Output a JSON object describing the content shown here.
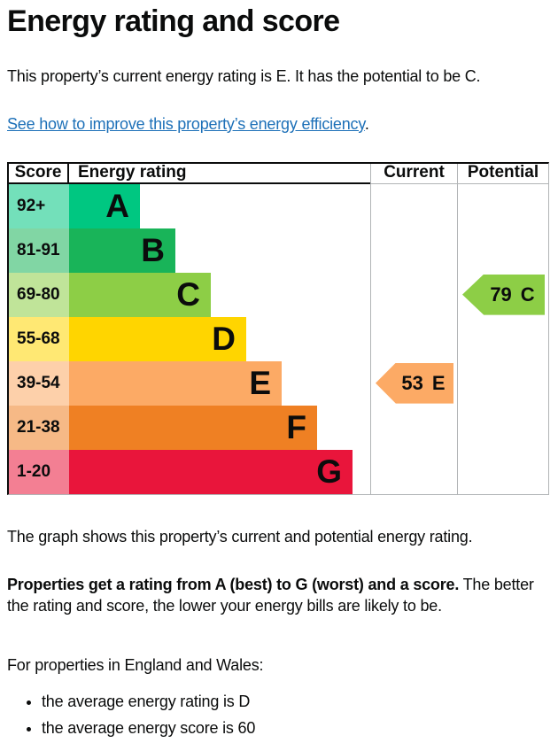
{
  "page": {
    "title": "Energy rating and score",
    "intro": "This property’s current energy rating is E. It has the potential to be C.",
    "link_text": "See how to improve this property’s energy efficiency",
    "link_suffix": ".",
    "link_color": "#1d70b8",
    "caption": "The graph shows this property’s current and potential energy rating.",
    "explain_bold": "Properties get a rating from A (best) to G (worst) and a score.",
    "explain_rest": " The better the rating and score, the lower your energy bills are likely to be.",
    "region_intro": "For properties in England and Wales:",
    "bullets": [
      "the average energy rating is D",
      "the average energy score is 60"
    ]
  },
  "chart_data": {
    "type": "bar",
    "orientation": "horizontal",
    "title": "Energy rating and score",
    "columns": [
      "Score",
      "Energy rating",
      "Current",
      "Potential"
    ],
    "categories": [
      "A",
      "B",
      "C",
      "D",
      "E",
      "F",
      "G"
    ],
    "score_ranges": [
      "92+",
      "81-91",
      "69-80",
      "55-68",
      "39-54",
      "21-38",
      "1-20"
    ],
    "relative_bar_lengths": [
      1,
      1.5,
      2,
      2.5,
      3,
      3.5,
      4
    ],
    "band_colors": [
      "#00c781",
      "#19b459",
      "#8dce46",
      "#ffd500",
      "#fcaa65",
      "#ef8023",
      "#e9153b"
    ],
    "current": {
      "score": 53,
      "rating": "E",
      "color": "#fcaa65",
      "column": "Current"
    },
    "potential": {
      "score": 79,
      "rating": "C",
      "color": "#8dce46",
      "column": "Potential"
    },
    "legend": "none",
    "grid": "off"
  }
}
